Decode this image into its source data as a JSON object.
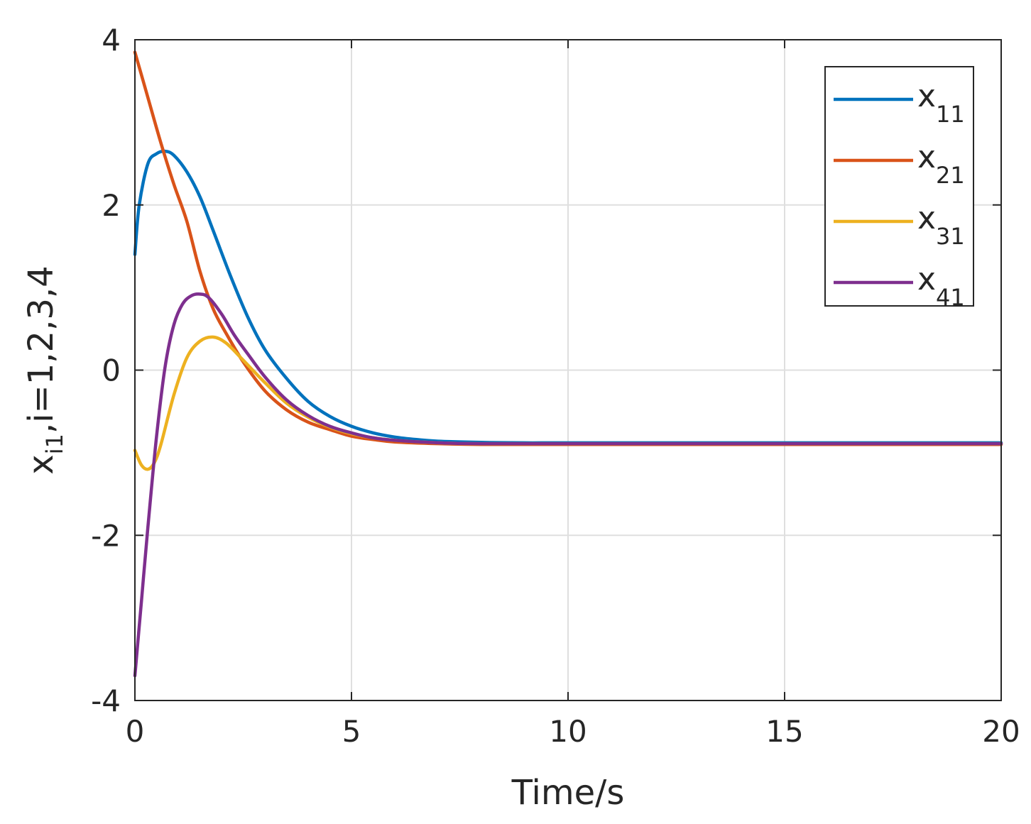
{
  "chart_data": {
    "type": "line",
    "xlabel": "Time/s",
    "ylabel": {
      "base": "x",
      "sub": "i1",
      "suffix": ",i=1,2,3,4"
    },
    "xlim": [
      0,
      20
    ],
    "ylim": [
      -4,
      4
    ],
    "xticks": [
      0,
      5,
      10,
      15,
      20
    ],
    "yticks": [
      -4,
      -2,
      0,
      2,
      4
    ],
    "grid": true,
    "legend_position": "top-right",
    "series": [
      {
        "name": "x11",
        "label_base": "x",
        "label_sub": "11",
        "color": "#0072BD",
        "x": [
          0,
          0.1,
          0.3,
          0.5,
          0.7,
          0.9,
          1.2,
          1.5,
          1.8,
          2.2,
          2.6,
          3.0,
          3.5,
          4.0,
          4.5,
          5.0,
          5.5,
          6.0,
          6.5,
          7.0,
          8.0,
          9.0,
          10,
          15,
          20
        ],
        "y": [
          1.4,
          2.0,
          2.5,
          2.62,
          2.65,
          2.6,
          2.4,
          2.1,
          1.7,
          1.15,
          0.65,
          0.25,
          -0.1,
          -0.38,
          -0.56,
          -0.68,
          -0.76,
          -0.81,
          -0.84,
          -0.86,
          -0.875,
          -0.88,
          -0.88,
          -0.88,
          -0.88
        ]
      },
      {
        "name": "x21",
        "label_base": "x",
        "label_sub": "21",
        "color": "#D95319",
        "x": [
          0,
          0.3,
          0.6,
          0.9,
          1.2,
          1.5,
          1.8,
          2.1,
          2.5,
          3.0,
          3.5,
          4.0,
          4.5,
          5.0,
          5.5,
          6.0,
          7.0,
          8.0,
          10,
          15,
          20
        ],
        "y": [
          3.85,
          3.3,
          2.75,
          2.25,
          1.8,
          1.2,
          0.75,
          0.45,
          0.1,
          -0.25,
          -0.48,
          -0.63,
          -0.72,
          -0.8,
          -0.84,
          -0.87,
          -0.89,
          -0.9,
          -0.9,
          -0.9,
          -0.9
        ]
      },
      {
        "name": "x31",
        "label_base": "x",
        "label_sub": "31",
        "color": "#EDB120",
        "x": [
          0,
          0.15,
          0.3,
          0.45,
          0.6,
          0.9,
          1.2,
          1.5,
          1.8,
          2.1,
          2.5,
          3.0,
          3.5,
          4.0,
          4.5,
          5.0,
          5.5,
          6.0,
          7.0,
          8.0,
          10,
          15,
          20
        ],
        "y": [
          -0.97,
          -1.15,
          -1.2,
          -1.12,
          -0.9,
          -0.3,
          0.15,
          0.35,
          0.4,
          0.33,
          0.12,
          -0.15,
          -0.4,
          -0.57,
          -0.69,
          -0.77,
          -0.82,
          -0.85,
          -0.88,
          -0.89,
          -0.89,
          -0.89,
          -0.89
        ]
      },
      {
        "name": "x41",
        "label_base": "x",
        "label_sub": "41",
        "color": "#7E2F8E",
        "x": [
          0,
          0.15,
          0.3,
          0.5,
          0.7,
          0.9,
          1.1,
          1.3,
          1.5,
          1.7,
          2.0,
          2.3,
          2.6,
          3.0,
          3.5,
          4.0,
          4.5,
          5.0,
          5.5,
          6.0,
          7.0,
          8.0,
          10,
          15,
          20
        ],
        "y": [
          -3.7,
          -2.8,
          -1.9,
          -0.8,
          0.05,
          0.55,
          0.8,
          0.9,
          0.92,
          0.88,
          0.68,
          0.42,
          0.2,
          -0.08,
          -0.36,
          -0.55,
          -0.68,
          -0.76,
          -0.82,
          -0.85,
          -0.88,
          -0.89,
          -0.89,
          -0.89,
          -0.89
        ]
      }
    ]
  }
}
